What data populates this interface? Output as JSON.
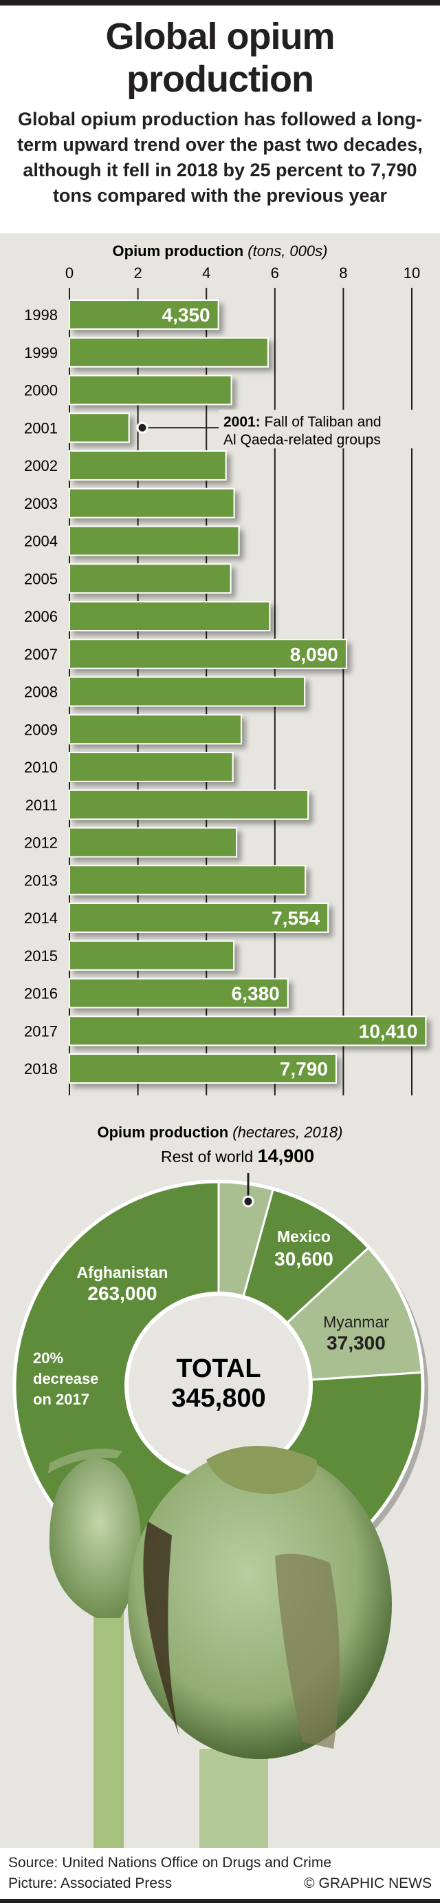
{
  "title_lines": [
    "Global opium",
    "production"
  ],
  "subtitle": "Global opium production has followed a long-term upward trend over the past two decades, although it fell in 2018 by 25 percent to 7,790 tons compared with the previous year",
  "colors": {
    "bar": "#6a983c",
    "dark_slice": "#5e8c3a",
    "light_slice": "#a9bf92",
    "panel": "#e7e5df"
  },
  "chart_data": [
    {
      "type": "bar",
      "orientation": "horizontal",
      "title": "Opium production",
      "title_unit": "(tons, 000s)",
      "xlim": [
        0,
        10
      ],
      "xticks": [
        "0",
        "2",
        "4",
        "6",
        "8",
        "10"
      ],
      "grid": true,
      "categories": [
        "1998",
        "1999",
        "2000",
        "2001",
        "2002",
        "2003",
        "2004",
        "2005",
        "2006",
        "2007",
        "2008",
        "2009",
        "2010",
        "2011",
        "2012",
        "2013",
        "2014",
        "2015",
        "2016",
        "2017",
        "2018"
      ],
      "values": [
        4.35,
        5.8,
        4.73,
        1.74,
        4.57,
        4.81,
        4.95,
        4.71,
        5.85,
        8.09,
        6.87,
        5.02,
        4.77,
        6.97,
        4.88,
        6.89,
        7.554,
        4.8,
        6.38,
        10.41,
        7.79
      ],
      "data_labels": {
        "1998": "4,350",
        "2007": "8,090",
        "2014": "7,554",
        "2016": "6,380",
        "2017": "10,410",
        "2018": "7,790"
      },
      "annotation": {
        "category": "2001",
        "bold": "2001:",
        "text_lines": [
          "Fall of Taliban and",
          "Al Qaeda-related groups"
        ]
      }
    },
    {
      "type": "pie",
      "variant": "donut",
      "title": "Opium production",
      "title_unit": "(hectares, 2018)",
      "slices": [
        {
          "label": "Rest of world",
          "value": 14900,
          "value_label": "14,900",
          "shade": "light"
        },
        {
          "label": "Mexico",
          "value": 30600,
          "value_label": "30,600",
          "shade": "dark"
        },
        {
          "label": "Myanmar",
          "value": 37300,
          "value_label": "37,300",
          "shade": "light"
        },
        {
          "label": "Afghanistan",
          "value": 263000,
          "value_label": "263,000",
          "shade": "dark"
        }
      ],
      "center_label": "TOTAL",
      "center_value": "345,800",
      "afghan_note_lines": [
        "20%",
        "decrease",
        "on 2017"
      ]
    }
  ],
  "footer": {
    "source": "Source: United Nations Office on Drugs and Crime",
    "picture": "Picture: Associated Press",
    "credit": "© GRAPHIC NEWS"
  }
}
